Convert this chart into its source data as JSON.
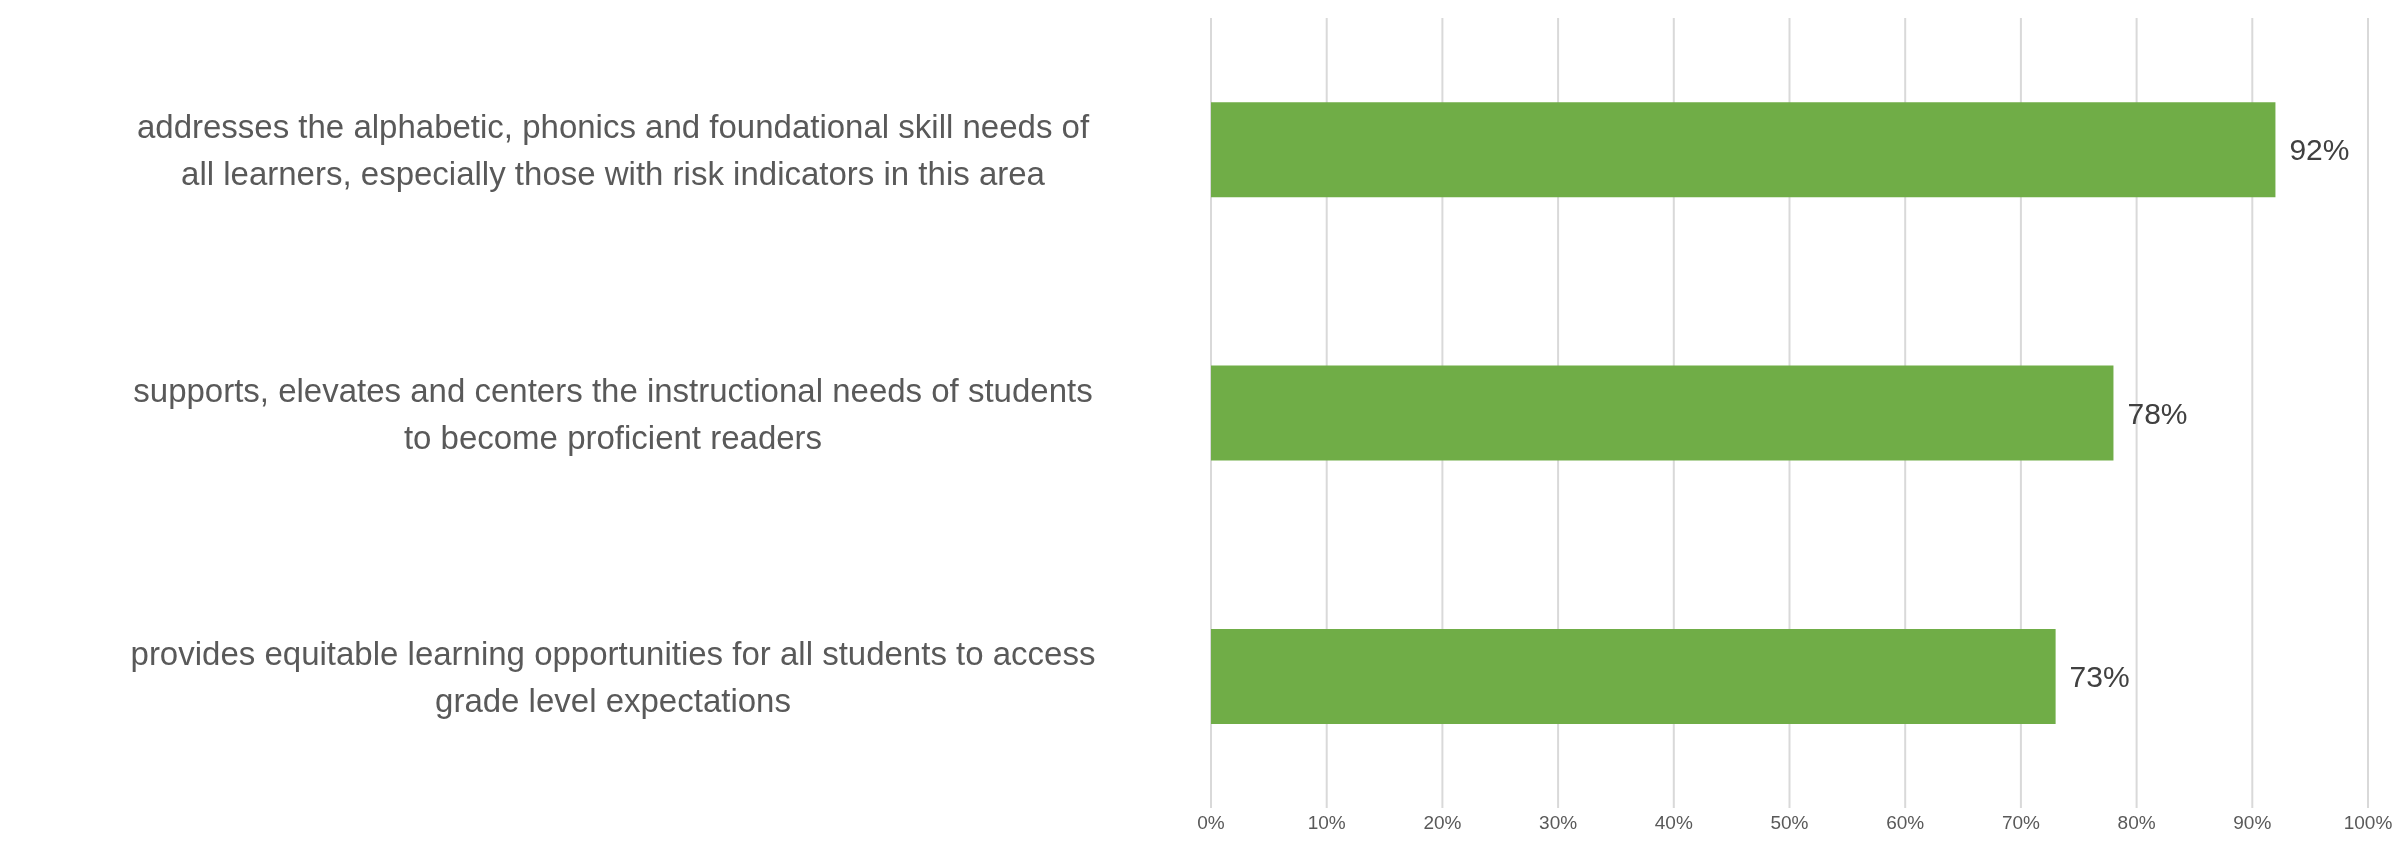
{
  "chart_data": {
    "type": "bar",
    "orientation": "horizontal",
    "categories": [
      "addresses the alphabetic, phonics and foundational skill needs of all learners, especially those with risk indicators in this area",
      "supports, elevates and centers the instructional needs of students to become proficient readers",
      "provides equitable learning opportunities for all students to access grade level expectations"
    ],
    "values": [
      92,
      78,
      73
    ],
    "value_labels": [
      "92%",
      "78%",
      "73%"
    ],
    "color": "#70ad47",
    "xlim": [
      0,
      100
    ],
    "xticks": [
      {
        "value": 0,
        "label": "0%"
      },
      {
        "value": 10,
        "label": "10%"
      },
      {
        "value": 20,
        "label": "20%"
      },
      {
        "value": 30,
        "label": "30%"
      },
      {
        "value": 40,
        "label": "40%"
      },
      {
        "value": 50,
        "label": "50%"
      },
      {
        "value": 60,
        "label": "60%"
      },
      {
        "value": 70,
        "label": "70%"
      },
      {
        "value": 80,
        "label": "80%"
      },
      {
        "value": 90,
        "label": "90%"
      },
      {
        "value": 100,
        "label": "100%"
      }
    ],
    "grid": "x"
  }
}
